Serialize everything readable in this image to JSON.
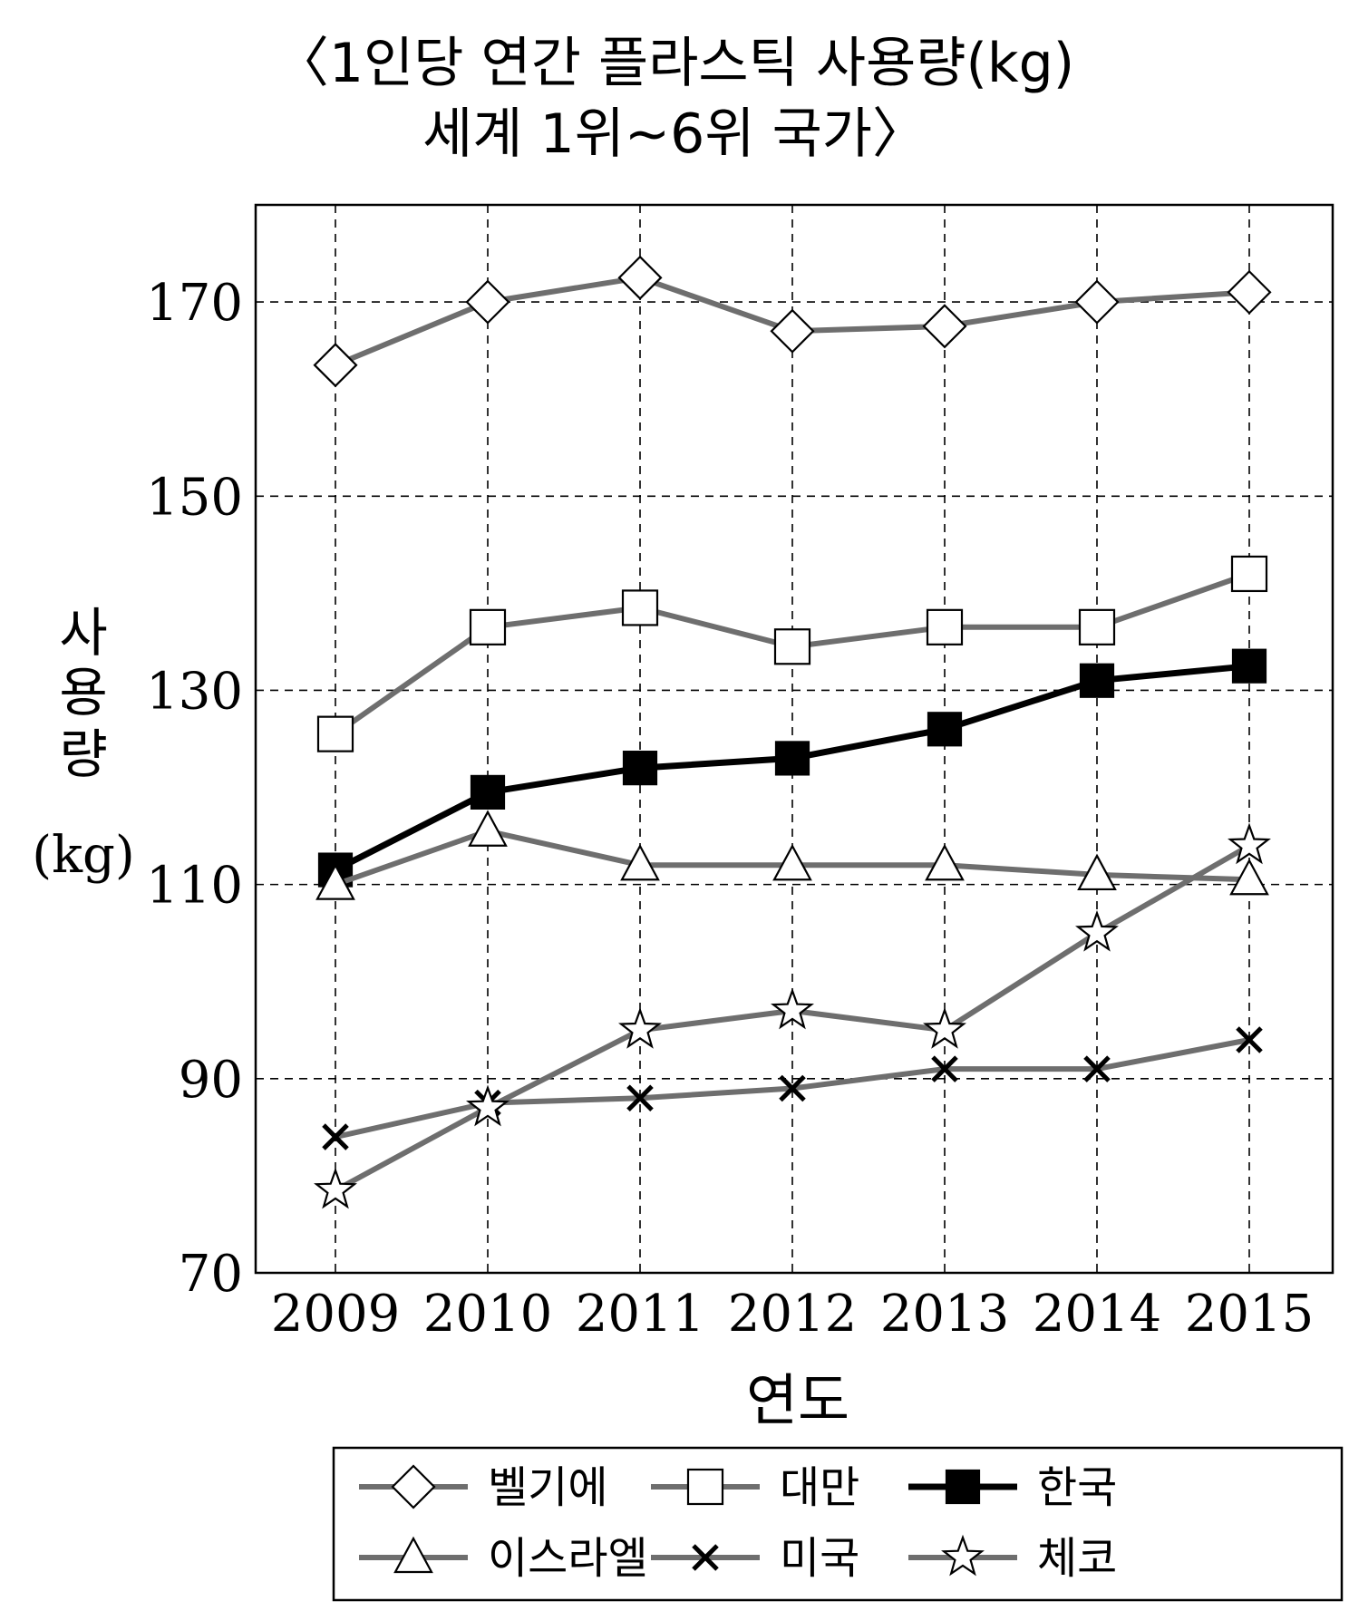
{
  "chart_data": {
    "type": "line",
    "title_line1": "〈1인당 연간 플라스틱 사용량(kg)",
    "title_line2": "세계 1위~6위 국가〉",
    "xlabel": "연도",
    "ylabel_chars": [
      "사",
      "용",
      "량"
    ],
    "ylabel_unit": "(kg)",
    "categories": [
      "2009",
      "2010",
      "2011",
      "2012",
      "2013",
      "2014",
      "2015"
    ],
    "yticks": [
      "70",
      "90",
      "110",
      "130",
      "150",
      "170"
    ],
    "ylim": [
      70,
      180
    ],
    "grid": true,
    "legend_position": "bottom",
    "series": [
      {
        "name": "벨기에",
        "marker": "diamond",
        "color": "#6e6e6e",
        "values": [
          163.5,
          170,
          172.5,
          167,
          167.5,
          170,
          171
        ]
      },
      {
        "name": "대만",
        "marker": "square-open",
        "color": "#6e6e6e",
        "values": [
          125.5,
          136.5,
          138.5,
          134.5,
          136.5,
          136.5,
          142
        ]
      },
      {
        "name": "한국",
        "marker": "square-filled",
        "color": "#000000",
        "values": [
          111.5,
          119.5,
          122,
          123,
          126,
          131,
          132.5
        ]
      },
      {
        "name": "이스라엘",
        "marker": "triangle",
        "color": "#6e6e6e",
        "values": [
          110,
          115.5,
          112,
          112,
          112,
          111,
          110.5
        ]
      },
      {
        "name": "미국",
        "marker": "x",
        "color": "#6e6e6e",
        "values": [
          84,
          87.5,
          88,
          89,
          91,
          91,
          94
        ]
      },
      {
        "name": "체코",
        "marker": "star",
        "color": "#6e6e6e",
        "values": [
          78.5,
          87,
          95,
          97,
          95,
          105,
          114
        ]
      }
    ]
  }
}
